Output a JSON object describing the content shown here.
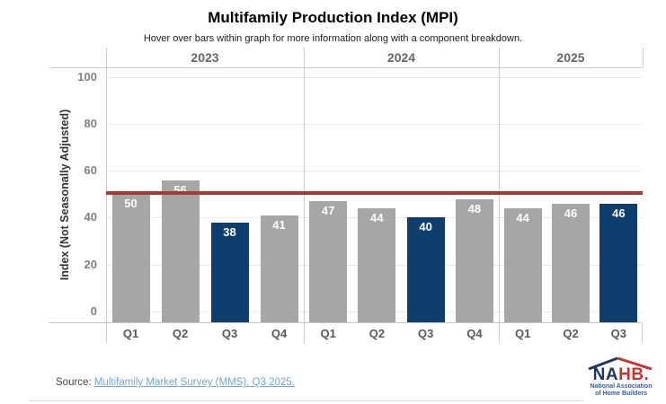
{
  "header": {
    "title": "Multifamily Production Index (MPI)",
    "subtitle": "Hover over bars within graph for more information along with a component breakdown."
  },
  "chart_data": {
    "type": "bar",
    "title": "Multifamily Production Index (MPI)",
    "subtitle": "Hover over bars within graph for more information along with a component breakdown.",
    "xlabel": "",
    "ylabel": "Index (Not Seasonally Adjusted)",
    "yticks": [
      0,
      20,
      40,
      60,
      80,
      100
    ],
    "ylim": [
      -5,
      104
    ],
    "grid": true,
    "legend": "none",
    "reference_line": {
      "value": 50
    },
    "groups": [
      {
        "year": "2023",
        "categories": [
          "Q1",
          "Q2",
          "Q3",
          "Q4"
        ],
        "values": [
          50,
          56,
          38,
          41
        ],
        "highlight": [
          false,
          false,
          true,
          false
        ]
      },
      {
        "year": "2024",
        "categories": [
          "Q1",
          "Q2",
          "Q3",
          "Q4"
        ],
        "values": [
          47,
          44,
          40,
          48
        ],
        "highlight": [
          false,
          false,
          true,
          false
        ]
      },
      {
        "year": "2025",
        "categories": [
          "Q1",
          "Q2",
          "Q3"
        ],
        "values": [
          44,
          46,
          46
        ],
        "highlight": [
          false,
          false,
          true
        ]
      }
    ],
    "colors": {
      "bar": "#A6A6A6",
      "bar_highlight": "#0D3E6D",
      "reference_line": "#A23B31",
      "value_label": "#FFFFFF"
    }
  },
  "source": {
    "prefix": "Source:",
    "link_text": "Multifamily Market Survey (MMS), Q3 2025."
  },
  "logo": {
    "name_part1": "NA",
    "name_part2": "HB.",
    "tagline_line1": "National Association",
    "tagline_line2": "of Home Builders"
  }
}
